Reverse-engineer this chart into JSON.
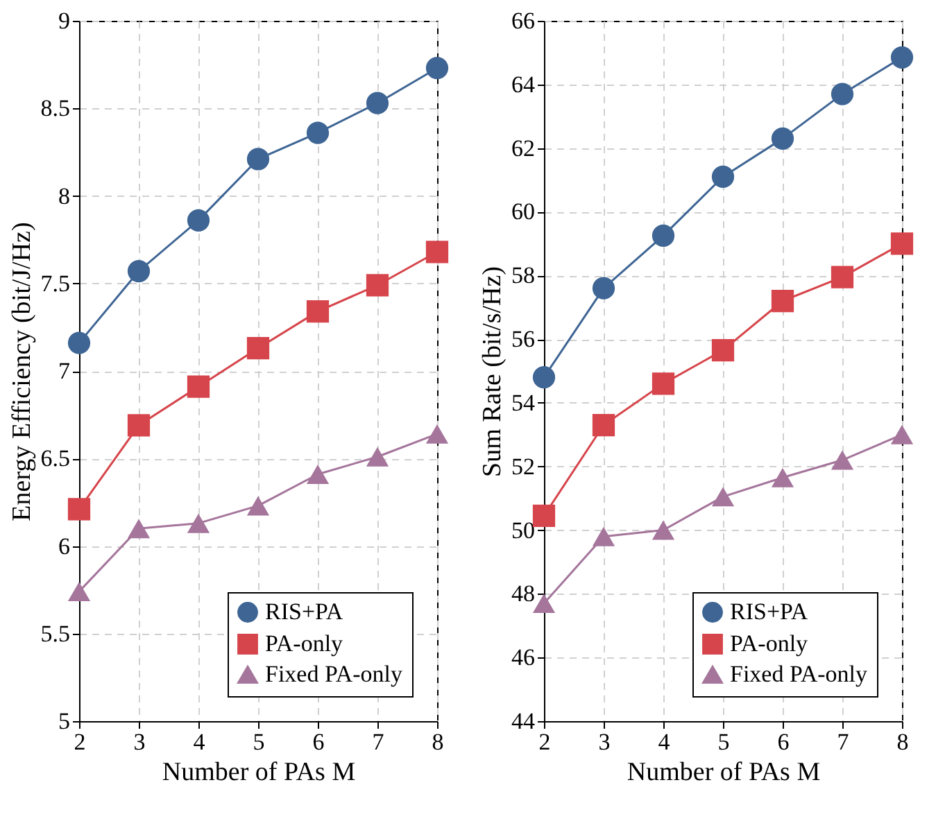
{
  "chart_data": [
    {
      "type": "line",
      "xlabel": "Number of PAs M",
      "ylabel": "Energy Efficiency (bit/J/Hz)",
      "x": [
        2,
        3,
        4,
        5,
        6,
        7,
        8
      ],
      "xlim": [
        2,
        8
      ],
      "xticks": [
        2,
        3,
        4,
        5,
        6,
        7,
        8
      ],
      "ylim": [
        5,
        9
      ],
      "yticks": [
        5,
        5.5,
        6,
        6.5,
        7,
        7.5,
        8,
        8.5,
        9
      ],
      "grid": true,
      "legend": "bottom right",
      "line_style": "solid",
      "series": [
        {
          "name": "RIS+PA",
          "color": "#3e6594",
          "marker": "circle",
          "values": [
            7.16,
            7.57,
            7.86,
            8.21,
            8.36,
            8.53,
            8.73
          ]
        },
        {
          "name": "PA-only",
          "color": "#d6454b",
          "marker": "square",
          "values": [
            6.21,
            6.69,
            6.91,
            7.13,
            7.34,
            7.49,
            7.68
          ]
        },
        {
          "name": "Fixed PA-only",
          "color": "#a5759b",
          "marker": "triangle",
          "values": [
            5.74,
            6.1,
            6.13,
            6.23,
            6.41,
            6.51,
            6.64
          ]
        }
      ]
    },
    {
      "type": "line",
      "xlabel": "Number of PAs M",
      "ylabel": "Sum Rate (bit/s/Hz)",
      "x": [
        2,
        3,
        4,
        5,
        6,
        7,
        8
      ],
      "xlim": [
        2,
        8
      ],
      "xticks": [
        2,
        3,
        4,
        5,
        6,
        7,
        8
      ],
      "ylim": [
        44,
        66
      ],
      "yticks": [
        44,
        46,
        48,
        50,
        52,
        54,
        56,
        58,
        60,
        62,
        64,
        66
      ],
      "grid": true,
      "legend": "bottom right",
      "line_style": "solid",
      "series": [
        {
          "name": "RIS+PA",
          "color": "#3e6594",
          "marker": "circle",
          "values": [
            54.8,
            57.6,
            59.25,
            61.1,
            62.3,
            63.7,
            64.85
          ]
        },
        {
          "name": "PA-only",
          "color": "#d6454b",
          "marker": "square",
          "values": [
            50.45,
            53.3,
            54.6,
            55.65,
            57.2,
            57.95,
            59.0
          ]
        },
        {
          "name": "Fixed PA-only",
          "color": "#a5759b",
          "marker": "triangle",
          "values": [
            47.7,
            49.8,
            50.0,
            51.05,
            51.65,
            52.2,
            53.0
          ]
        }
      ]
    }
  ]
}
